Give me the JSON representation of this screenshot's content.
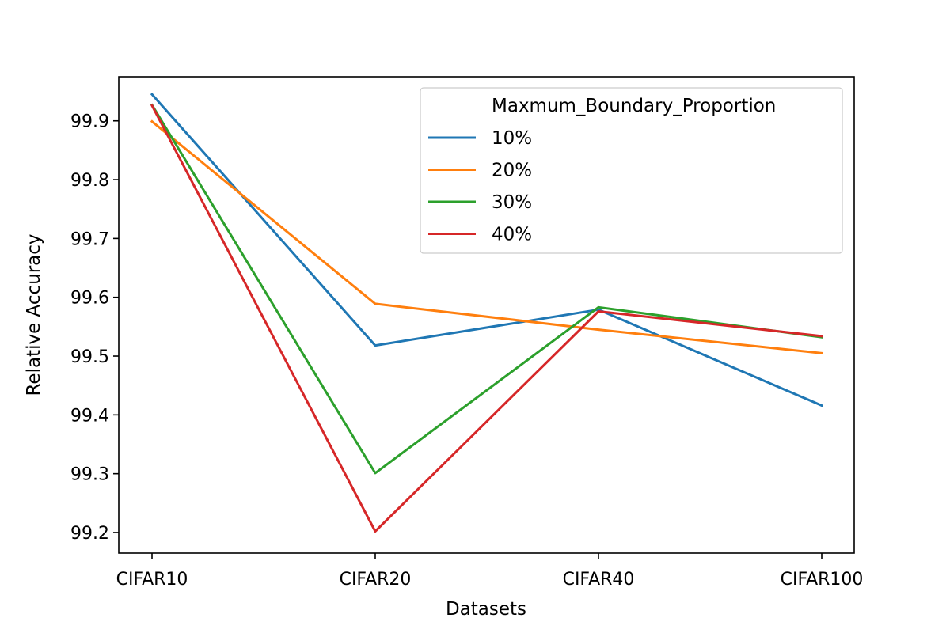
{
  "chart_data": {
    "type": "line",
    "xlabel": "Datasets",
    "ylabel": "Relative Accuracy",
    "categories": [
      "CIFAR10",
      "CIFAR20",
      "CIFAR40",
      "CIFAR100"
    ],
    "yticks": [
      "99.2",
      "99.3",
      "99.4",
      "99.5",
      "99.6",
      "99.7",
      "99.8",
      "99.9"
    ],
    "ylim": [
      99.165,
      99.975
    ],
    "grid": false,
    "legend": {
      "title": "Maxmum_Boundary_Proportion",
      "placement": "top-right"
    },
    "series": [
      {
        "name": "10%",
        "color": "#1f77b4",
        "values": [
          99.945,
          99.518,
          99.579,
          99.416
        ]
      },
      {
        "name": "20%",
        "color": "#ff7f0e",
        "values": [
          99.899,
          99.589,
          99.545,
          99.505
        ]
      },
      {
        "name": "30%",
        "color": "#2ca02c",
        "values": [
          99.927,
          99.301,
          99.583,
          99.532
        ]
      },
      {
        "name": "40%",
        "color": "#d62728",
        "values": [
          99.926,
          99.202,
          99.576,
          99.534
        ]
      }
    ]
  }
}
